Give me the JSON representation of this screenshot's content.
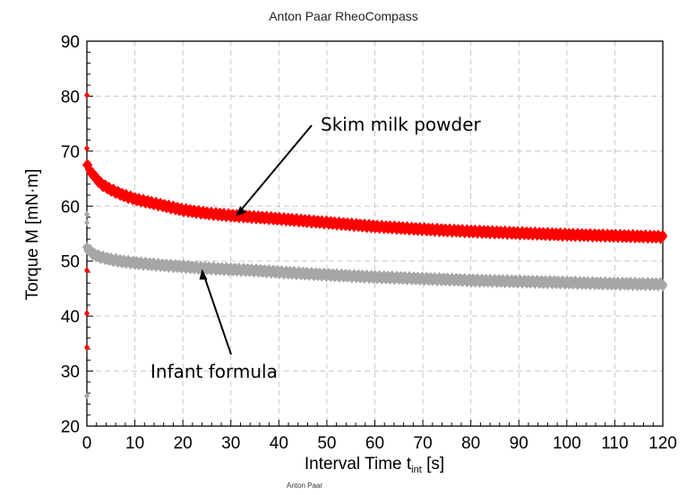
{
  "header": {
    "title": "Anton Paar RheoCompass"
  },
  "footer": {
    "text": "Anton Paar"
  },
  "chart_data": {
    "type": "scatter",
    "title": "Anton Paar RheoCompass",
    "xlabel_main": "Interval Time t",
    "xlabel_sub": "int",
    "xlabel_unit": " [s]",
    "ylabel": "Torque M [mN·m]",
    "xlim": [
      0,
      120
    ],
    "ylim": [
      20,
      90
    ],
    "x_ticks": [
      0,
      10,
      20,
      30,
      40,
      50,
      60,
      70,
      80,
      90,
      100,
      110,
      120
    ],
    "y_ticks": [
      20,
      30,
      40,
      50,
      60,
      70,
      80,
      90
    ],
    "grid": true,
    "series": [
      {
        "name": "Skim  milk powder",
        "color": "#ff0000",
        "x": [
          0,
          1,
          2,
          3,
          5,
          7,
          10,
          15,
          20,
          25,
          30,
          35,
          40,
          50,
          60,
          70,
          80,
          90,
          100,
          110,
          120
        ],
        "y": [
          67.5,
          66.0,
          65.0,
          64.0,
          63.0,
          62.2,
          61.3,
          60.3,
          59.3,
          58.7,
          58.3,
          58.0,
          57.7,
          57.0,
          56.3,
          55.8,
          55.4,
          55.1,
          54.8,
          54.6,
          54.4
        ]
      },
      {
        "name": "Infant formula",
        "color": "#a6a6a6",
        "x": [
          0,
          1,
          2,
          3,
          5,
          7,
          10,
          15,
          20,
          25,
          30,
          35,
          40,
          50,
          60,
          70,
          80,
          90,
          100,
          110,
          120
        ],
        "y": [
          52.5,
          51.5,
          51.0,
          50.7,
          50.3,
          50.0,
          49.7,
          49.3,
          49.0,
          48.7,
          48.5,
          48.3,
          48.0,
          47.5,
          47.1,
          46.8,
          46.5,
          46.3,
          46.1,
          45.9,
          45.8
        ]
      }
    ],
    "annotations": [
      {
        "text": "Skim  milk powder",
        "arrow_to": [
          31,
          58.2
        ]
      },
      {
        "text": "Infant formula",
        "arrow_to": [
          24,
          48.6
        ]
      }
    ]
  }
}
